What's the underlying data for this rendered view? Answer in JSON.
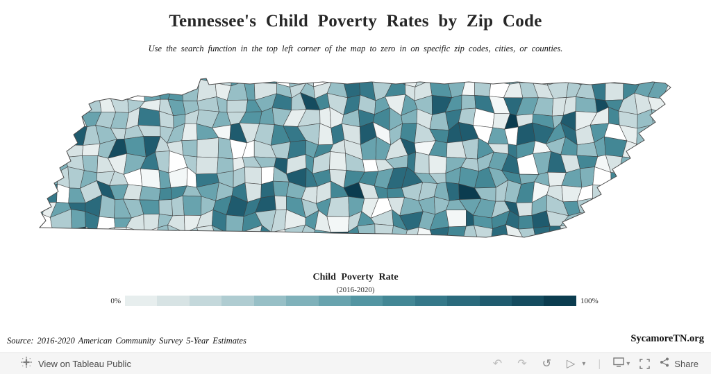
{
  "header": {
    "title": "Tennessee's Child Poverty Rates by Zip Code",
    "subtitle": "Use the search function in the top left corner of the map to zero in on specific zip codes, cities, or counties."
  },
  "chart_data": {
    "type": "heatmap",
    "subtype": "choropleth-map",
    "region": "Tennessee",
    "geographic_unit": "ZIP code",
    "title": "Tennessee's Child Poverty Rates by Zip Code",
    "measure": "Child Poverty Rate (2016-2020)",
    "legend": {
      "title": "Child Poverty Rate",
      "subtitle": "(2016-2020)",
      "min_label": "0%",
      "max_label": "100%",
      "range": [
        0,
        100
      ],
      "unit": "%",
      "position": "bottom-center",
      "colors": [
        "#e7eeee",
        "#d7e3e4",
        "#c4d8db",
        "#afccd1",
        "#97bfc6",
        "#7fb1ba",
        "#68a3ae",
        "#5395a2",
        "#438795",
        "#357889",
        "#2a6a7c",
        "#1f5b6e",
        "#154c5f",
        "#0b3c4f"
      ]
    },
    "source": "Source: 2016-2020 American Community Survey 5-Year Estimates"
  },
  "footer": {
    "source": "Source: 2016-2020 American Community Survey 5-Year Estimates",
    "branding": "SycamoreTN.org"
  },
  "toolbar": {
    "view_label": "View on Tableau Public",
    "undo_glyph": "↶",
    "redo_glyph": "↷",
    "reset_glyph": "↺",
    "resume_glyph": "▷",
    "dropdown_glyph": "▾",
    "separator_glyph": "|",
    "share_label": "Share"
  }
}
